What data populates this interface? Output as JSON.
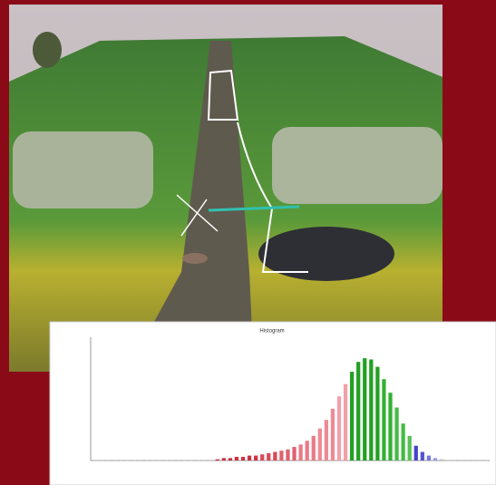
{
  "chart_data": {
    "type": "bar",
    "title": "Histogram",
    "categories": [
      null,
      null,
      null,
      null,
      null,
      null,
      null,
      null,
      null,
      null,
      null,
      null,
      null,
      null,
      null,
      null,
      null,
      null,
      null,
      null,
      null,
      null,
      null,
      null,
      null,
      null,
      null,
      null,
      null,
      null,
      null,
      null,
      null,
      null,
      null,
      null,
      null,
      null,
      null,
      null,
      null,
      null,
      null,
      null,
      null,
      null,
      null,
      null,
      null,
      null,
      null,
      null,
      null,
      null,
      null,
      null,
      null,
      null,
      null,
      null,
      null,
      null
    ],
    "values": [
      0.5,
      0.5,
      0.5,
      0.5,
      0.5,
      0.5,
      0.5,
      0.5,
      0.5,
      0.5,
      0.5,
      0.5,
      0.5,
      0.5,
      0.5,
      0.5,
      0.5,
      0.5,
      0.5,
      1,
      2,
      2,
      3,
      3,
      4,
      4,
      5,
      6,
      7,
      8,
      9,
      11,
      13,
      16,
      20,
      26,
      33,
      42,
      52,
      62,
      72,
      80,
      83,
      82,
      76,
      66,
      55,
      43,
      30,
      20,
      12,
      7,
      4,
      2,
      1,
      0.5,
      0.5,
      0.5,
      0.5,
      0.5,
      0.5,
      0.5
    ],
    "colors": [
      "#bbbbbb",
      "#bbbbbb",
      "#bbbbbb",
      "#bbbbbb",
      "#bbbbbb",
      "#bbbbbb",
      "#bbbbbb",
      "#bbbbbb",
      "#bbbbbb",
      "#bbbbbb",
      "#bbbbbb",
      "#bbbbbb",
      "#bbbbbb",
      "#bbbbbb",
      "#bbbbbb",
      "#bbbbbb",
      "#bbbbbb",
      "#bbbbbb",
      "#bbbbbb",
      "#cc3344",
      "#cc3344",
      "#cc3344",
      "#cc3344",
      "#cc3344",
      "#cc3344",
      "#cc3344",
      "#d84a5a",
      "#d84a5a",
      "#d84a5a",
      "#e06070",
      "#e06070",
      "#e06070",
      "#e87a86",
      "#e87a86",
      "#e87a86",
      "#ee8a94",
      "#ee8a94",
      "#ee8a94",
      "#f0a0a8",
      "#f0a0a8",
      "#22a022",
      "#22a022",
      "#22a022",
      "#22a022",
      "#22a022",
      "#33b033",
      "#33b033",
      "#44bb44",
      "#44bb44",
      "#55c055",
      "#4444cc",
      "#5555cc",
      "#7777dd",
      "#9999ee",
      "#bbbbbb",
      "#bbbbbb",
      "#bbbbbb",
      "#bbbbbb",
      "#bbbbbb",
      "#bbbbbb",
      "#bbbbbb",
      "#bbbbbb"
    ],
    "ylim": [
      0,
      100
    ]
  }
}
